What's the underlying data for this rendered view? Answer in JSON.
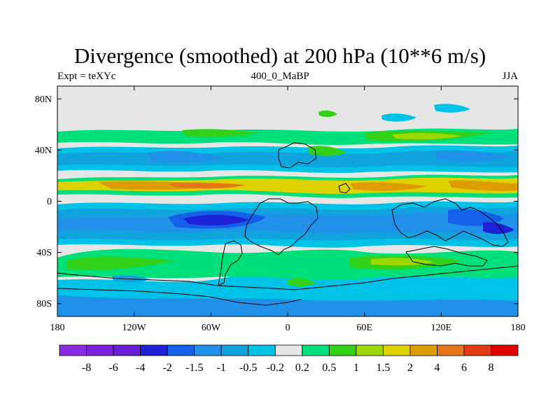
{
  "title": "Divergence (smoothed) at 200 hPa (10**6 m/s)",
  "left_label": "Expt = teXYc",
  "center_label": "400_0_MaBP",
  "right_label": "JJA",
  "map": {
    "lon_ticks": [
      "180",
      "120W",
      "60W",
      "0",
      "60E",
      "120E",
      "180"
    ],
    "lat_ticks": [
      "80N",
      "40N",
      "0",
      "40S",
      "80S"
    ]
  },
  "colorbar": {
    "colors": [
      "#8a2be2",
      "#7a22dd",
      "#6a1fd4",
      "#1f21d6",
      "#1460e8",
      "#2090e8",
      "#11a3dd",
      "#00c2e6",
      "#e6e6e6",
      "#00e07a",
      "#33d018",
      "#9dd700",
      "#ddd100",
      "#dd9d00",
      "#e6761c",
      "#e33b14",
      "#e00000"
    ],
    "labels": [
      "-8",
      "-6",
      "-4",
      "-2",
      "-1.5",
      "-1",
      "-0.5",
      "-0.2",
      "0.2",
      "0.5",
      "1",
      "1.5",
      "2",
      "4",
      "6",
      "8"
    ]
  }
}
